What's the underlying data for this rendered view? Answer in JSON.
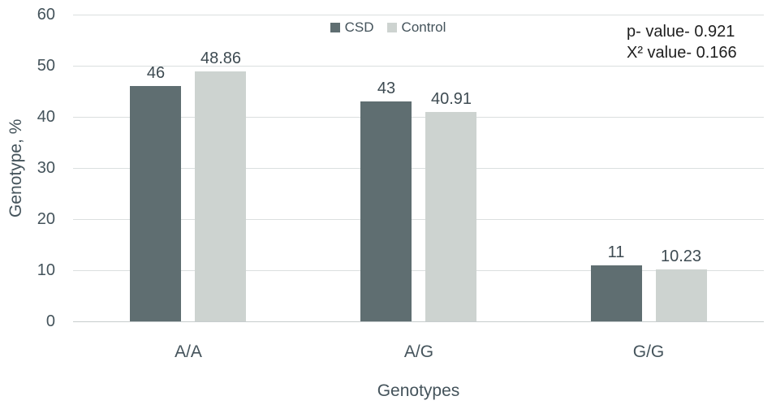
{
  "chart_data": {
    "type": "bar",
    "title": "",
    "categories": [
      "A/A",
      "A/G",
      "G/G"
    ],
    "series": [
      {
        "name": "CSD",
        "color": "#5f6e71",
        "values": [
          46,
          43,
          11
        ]
      },
      {
        "name": "Control",
        "color": "#cdd3d0",
        "values": [
          48.86,
          40.91,
          10.23
        ]
      }
    ],
    "xlabel": "Genotypes",
    "ylabel": "Genotype, %",
    "ylim": [
      0,
      60
    ],
    "yticks": [
      0,
      10,
      20,
      30,
      40,
      50,
      60
    ],
    "grid": true,
    "legend_position": "top",
    "annotations": [
      "p- value- 0.921",
      "X² value- 0.166"
    ],
    "colors": {
      "axis_text": "#44535b",
      "value_label_text": "#3e4b52",
      "annotation_text": "#1f1f1f",
      "gridline": "#dbdfdf",
      "axis_line": "#c6cccd",
      "background": "#ffffff"
    }
  }
}
